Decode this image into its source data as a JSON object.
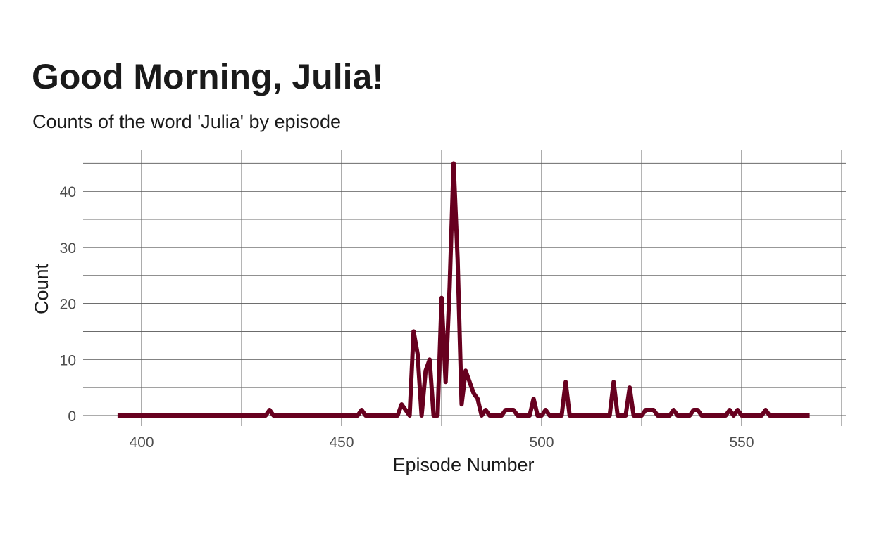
{
  "title": "Good Morning, Julia!",
  "subtitle": "Counts of the word 'Julia' by episode",
  "chart_data": {
    "type": "line",
    "title": "Good Morning, Julia!",
    "subtitle": "Counts of the word 'Julia' by episode",
    "xlabel": "Episode Number",
    "ylabel": "Count",
    "xlim": [
      385,
      575
    ],
    "ylim": [
      -2.2,
      45
    ],
    "x_ticks": [
      400,
      450,
      500,
      550
    ],
    "y_ticks": [
      0,
      10,
      20,
      30,
      40
    ],
    "x_tick_labels": [
      "400",
      "450",
      "500",
      "550"
    ],
    "y_tick_labels": [
      "0",
      "10",
      "20",
      "30",
      "40"
    ],
    "grid": true,
    "legend": "none",
    "line_color": "#67001f",
    "series": [
      {
        "x": [
          394,
          431,
          432,
          433,
          454,
          455,
          456,
          464,
          465,
          466,
          467,
          468,
          469,
          470,
          471,
          472,
          473,
          474,
          475,
          476,
          477,
          478,
          479,
          480,
          481,
          482,
          483,
          484,
          485,
          486,
          487,
          488,
          490,
          491,
          493,
          494,
          496,
          497,
          498,
          499,
          500,
          501,
          502,
          505,
          506,
          507,
          517,
          518,
          519,
          520,
          521,
          522,
          523,
          525,
          526,
          528,
          529,
          532,
          533,
          534,
          537,
          538,
          539,
          540,
          546,
          547,
          548,
          549,
          550,
          555,
          556,
          557,
          567
        ],
        "y": [
          0,
          0,
          1,
          0,
          0,
          1,
          0,
          0,
          2,
          1,
          0,
          15,
          11,
          0,
          8,
          10,
          0,
          0,
          21,
          6,
          23,
          45,
          28,
          2,
          8,
          6,
          4,
          3,
          0,
          1,
          0,
          0,
          0,
          1,
          1,
          0,
          0,
          0,
          3,
          0,
          0,
          1,
          0,
          0,
          6,
          0,
          0,
          6,
          0,
          0,
          0,
          5,
          0,
          0,
          1,
          1,
          0,
          0,
          1,
          0,
          0,
          1,
          1,
          0,
          0,
          1,
          0,
          1,
          0,
          0,
          1,
          0,
          0
        ]
      }
    ]
  }
}
